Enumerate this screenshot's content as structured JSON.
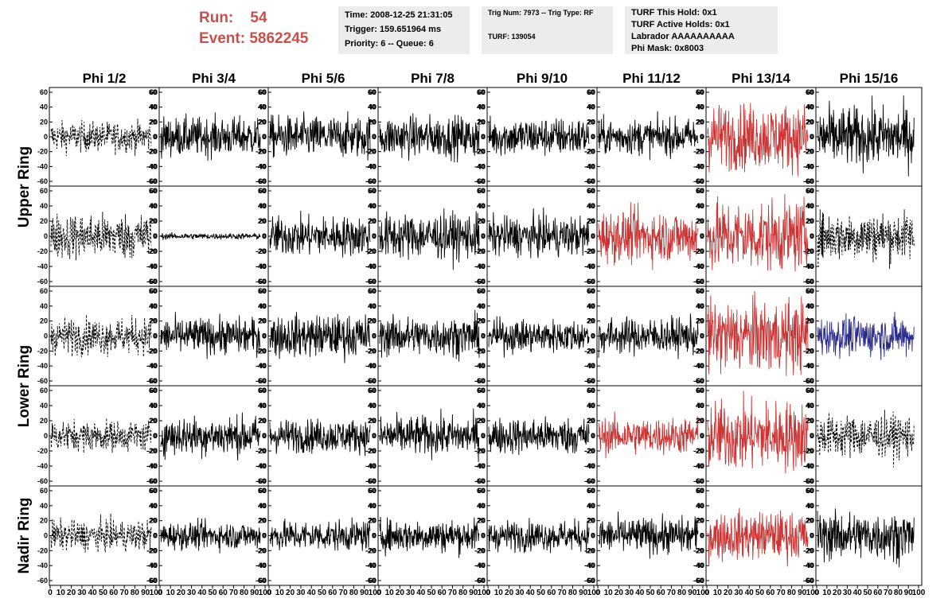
{
  "header": {
    "run_label": "Run:",
    "run_value": "54",
    "event_label": "Event:",
    "event_value": "5862245",
    "time": "Time: 2008-12-25 21:31:05",
    "trigger": "Trigger: 159.651964 ms",
    "priority": "Priority: 6 -- Queue: 6",
    "trig": "Trig Num: 7973 -- Trig Type: RF",
    "turf": "TURF: 139054",
    "turf_hold": "TURF This Hold: 0x1",
    "turf_active": "TURF Active Holds: 0x1",
    "labrador": "Labrador AAAAAAAAAA",
    "phi_mask": "Phi Mask: 0x8003"
  },
  "chart_data": {
    "type": "line",
    "columns": [
      "Phi 1/2",
      "Phi 3/4",
      "Phi 5/6",
      "Phi 7/8",
      "Phi 9/10",
      "Phi 11/12",
      "Phi 13/14",
      "Phi 15/16"
    ],
    "row_labels": [
      "Upper Ring",
      "Lower Ring",
      "Nadir Ring"
    ],
    "row_label_spans": [
      2,
      2,
      1
    ],
    "ylim": [
      -60,
      60
    ],
    "y_ticks": [
      -60,
      -40,
      -20,
      0,
      20,
      40,
      60
    ],
    "xlim": [
      0,
      100
    ],
    "x_tick_labels": [
      "0",
      "10",
      "20",
      "30",
      "40",
      "50",
      "60",
      "70",
      "80",
      "90",
      "100"
    ],
    "colors": {
      "normal": "#000000",
      "triggered": "#cc3333",
      "masked": "#2b2b8c"
    },
    "panels": [
      [
        "dashed",
        "solid",
        "solid",
        "solid",
        "solid",
        "solid",
        "red",
        "solid"
      ],
      [
        "dashed",
        "solid",
        "solid",
        "solid",
        "solid",
        "red",
        "red",
        "dashed"
      ],
      [
        "dashed",
        "solid",
        "solid",
        "solid",
        "solid",
        "solid",
        "red",
        "blue"
      ],
      [
        "dashed",
        "solid",
        "solid",
        "solid",
        "solid",
        "red",
        "red",
        "dashed"
      ],
      [
        "dashed",
        "solid",
        "solid",
        "solid",
        "solid",
        "solid",
        "red",
        "solid"
      ]
    ],
    "amplitudes": [
      [
        10,
        13,
        14,
        14,
        13,
        12,
        22,
        20
      ],
      [
        15,
        2,
        13,
        15,
        13,
        17,
        23,
        16
      ],
      [
        12,
        12,
        14,
        13,
        11,
        12,
        24,
        13
      ],
      [
        10,
        13,
        11,
        13,
        12,
        12,
        23,
        14
      ],
      [
        10,
        9,
        10,
        11,
        10,
        12,
        16,
        16
      ]
    ]
  }
}
